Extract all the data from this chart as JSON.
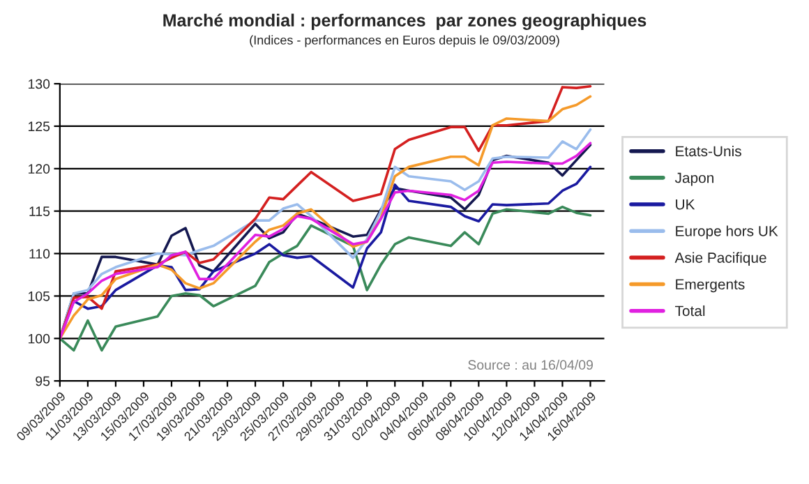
{
  "chart_data": {
    "type": "line",
    "title": "Marché mondial : performances  par zones geographiques",
    "subtitle": "(Indices - performances en Euros depuis le 09/03/2009)",
    "annotations": [
      "Source : au 16/04/09"
    ],
    "x": [
      "2009-03-09",
      "2009-03-10",
      "2009-03-11",
      "2009-03-12",
      "2009-03-13",
      "2009-03-16",
      "2009-03-17",
      "2009-03-18",
      "2009-03-19",
      "2009-03-20",
      "2009-03-23",
      "2009-03-24",
      "2009-03-25",
      "2009-03-26",
      "2009-03-27",
      "2009-03-30",
      "2009-03-31",
      "2009-04-01",
      "2009-04-02",
      "2009-04-03",
      "2009-04-06",
      "2009-04-07",
      "2009-04-08",
      "2009-04-09",
      "2009-04-10",
      "2009-04-13",
      "2009-04-14",
      "2009-04-15",
      "2009-04-16"
    ],
    "series": [
      {
        "name": "Etats-Unis",
        "color": "#141850",
        "values": [
          100,
          105.3,
          105.3,
          109.6,
          109.6,
          108.7,
          112.1,
          113.0,
          108.6,
          107.9,
          113.5,
          111.8,
          112.5,
          114.7,
          114.1,
          112.0,
          112.2,
          115.2,
          117.7,
          117.4,
          116.6,
          115.2,
          116.9,
          121.0,
          121.5,
          120.7,
          119.2,
          121.0,
          122.8
        ]
      },
      {
        "name": "Japon",
        "color": "#3a8a5a",
        "values": [
          100,
          98.6,
          102.1,
          98.6,
          101.4,
          102.6,
          105.0,
          105.3,
          105.1,
          103.8,
          106.2,
          109.0,
          110.0,
          110.9,
          113.3,
          110.9,
          105.7,
          108.7,
          111.1,
          111.9,
          110.9,
          112.5,
          111.1,
          114.7,
          115.2,
          114.7,
          115.5,
          114.8,
          114.5
        ]
      },
      {
        "name": "UK",
        "color": "#1a1aa0",
        "values": [
          100,
          104.4,
          103.5,
          103.8,
          105.7,
          108.6,
          108.4,
          105.7,
          105.8,
          107.9,
          110.0,
          111.1,
          109.8,
          109.5,
          109.7,
          106.0,
          110.6,
          112.5,
          118.1,
          116.2,
          115.5,
          114.4,
          113.8,
          115.8,
          115.7,
          115.9,
          117.4,
          118.2,
          120.2
        ]
      },
      {
        "name": "Europe hors UK",
        "color": "#9abcec",
        "values": [
          100,
          105.3,
          105.7,
          107.6,
          108.4,
          110.0,
          109.9,
          109.8,
          110.4,
          110.9,
          113.9,
          113.9,
          115.3,
          115.8,
          114.4,
          109.5,
          111.7,
          115.0,
          120.2,
          119.1,
          118.5,
          117.5,
          118.5,
          121.2,
          121.4,
          121.3,
          123.2,
          122.3,
          124.6
        ]
      },
      {
        "name": "Asie Pacifique",
        "color": "#d42020",
        "values": [
          100,
          104.8,
          104.9,
          103.5,
          107.9,
          108.7,
          109.5,
          110.2,
          108.9,
          109.3,
          114.1,
          116.6,
          116.4,
          118.0,
          119.6,
          116.2,
          116.6,
          117.0,
          122.3,
          123.4,
          124.9,
          124.9,
          122.1,
          125.1,
          125.1,
          125.6,
          129.6,
          129.5,
          129.7
        ]
      },
      {
        "name": "Emergents",
        "color": "#f59a2a",
        "values": [
          100,
          102.7,
          104.6,
          105.1,
          107.0,
          108.7,
          108.1,
          106.5,
          105.9,
          106.5,
          111.4,
          112.8,
          113.3,
          114.7,
          115.2,
          110.8,
          111.4,
          114.2,
          119.1,
          120.2,
          121.4,
          121.4,
          120.4,
          125.1,
          125.9,
          125.6,
          127.0,
          127.5,
          128.5
        ]
      },
      {
        "name": "Total",
        "color": "#e020e0",
        "values": [
          100,
          104.3,
          105.3,
          106.8,
          107.6,
          108.4,
          109.8,
          110.2,
          107.0,
          107.0,
          112.2,
          112.0,
          112.9,
          114.4,
          114.1,
          111.1,
          111.4,
          114.1,
          117.2,
          117.4,
          116.9,
          116.3,
          117.4,
          120.7,
          120.8,
          120.6,
          120.6,
          121.5,
          123.0
        ]
      }
    ],
    "xlim": [
      "2009-03-09",
      "2009-04-17"
    ],
    "xticks": [
      {
        "value": "2009-03-09",
        "label": "09/03/2009"
      },
      {
        "value": "2009-03-11",
        "label": "11/03/2009"
      },
      {
        "value": "2009-03-13",
        "label": "13/03/2009"
      },
      {
        "value": "2009-03-15",
        "label": "15/03/2009"
      },
      {
        "value": "2009-03-17",
        "label": "17/03/2009"
      },
      {
        "value": "2009-03-19",
        "label": "19/03/2009"
      },
      {
        "value": "2009-03-21",
        "label": "21/03/2009"
      },
      {
        "value": "2009-03-23",
        "label": "23/03/2009"
      },
      {
        "value": "2009-03-25",
        "label": "25/03/2009"
      },
      {
        "value": "2009-03-27",
        "label": "27/03/2009"
      },
      {
        "value": "2009-03-29",
        "label": "29/03/2009"
      },
      {
        "value": "2009-03-31",
        "label": "31/03/2009"
      },
      {
        "value": "2009-04-02",
        "label": "02/04/2009"
      },
      {
        "value": "2009-04-04",
        "label": "04/04/2009"
      },
      {
        "value": "2009-04-06",
        "label": "06/04/2009"
      },
      {
        "value": "2009-04-08",
        "label": "08/04/2009"
      },
      {
        "value": "2009-04-10",
        "label": "10/04/2009"
      },
      {
        "value": "2009-04-12",
        "label": "12/04/2009"
      },
      {
        "value": "2009-04-14",
        "label": "14/04/2009"
      },
      {
        "value": "2009-04-16",
        "label": "16/04/2009"
      }
    ],
    "ylim": [
      95,
      130
    ],
    "yticks": [
      95,
      100,
      105,
      110,
      115,
      120,
      125,
      130
    ],
    "grid": "y",
    "legend": "right",
    "marker": "none",
    "line_style": "solid"
  }
}
